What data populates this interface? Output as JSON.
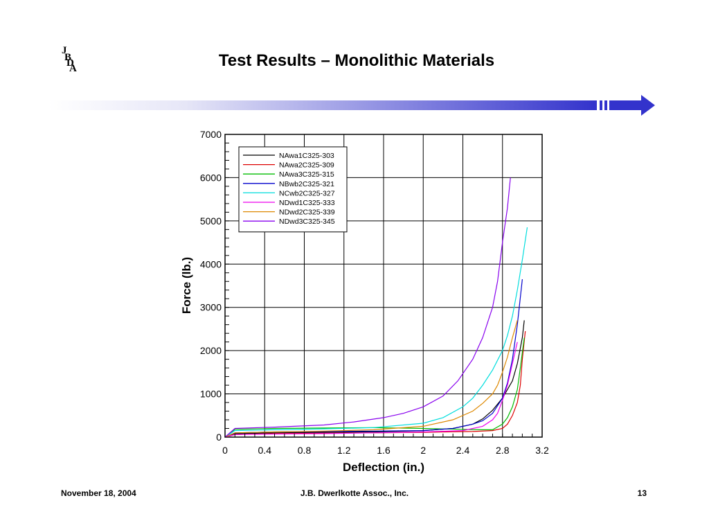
{
  "slide": {
    "title": "Test Results – Monolithic Materials",
    "logo_text": "JBDA",
    "footer_left": "November 18, 2004",
    "footer_center": "J.B. Dwerlkotte Assoc., Inc.",
    "footer_right": "13",
    "accent_color": "#3333cc"
  },
  "chart_data": {
    "type": "line",
    "title": "",
    "xlabel": "Deflection (in.)",
    "ylabel": "Force (lb.)",
    "xlim": [
      0,
      3.2
    ],
    "ylim": [
      0,
      7000
    ],
    "xticks": [
      0,
      0.4,
      0.8,
      1.2,
      1.6,
      2,
      2.4,
      2.8,
      3.2
    ],
    "xtick_labels": [
      "0",
      "0.4",
      "0.8",
      "1.2",
      "1.6",
      "2",
      "2.4",
      "2.8",
      "3.2"
    ],
    "yticks": [
      0,
      1000,
      2000,
      3000,
      4000,
      5000,
      6000,
      7000
    ],
    "ytick_labels": [
      "0",
      "1000",
      "2000",
      "3000",
      "4000",
      "5000",
      "6000",
      "7000"
    ],
    "grid": true,
    "legend_position": "top-left",
    "series": [
      {
        "name": "NAwa1C325-303",
        "color": "#000000",
        "x": [
          0,
          0.1,
          0.5,
          1.0,
          1.5,
          2.0,
          2.3,
          2.5,
          2.6,
          2.7,
          2.8,
          2.9,
          2.95,
          3.0,
          3.02
        ],
        "y": [
          0,
          80,
          100,
          110,
          120,
          150,
          200,
          300,
          420,
          620,
          900,
          1300,
          1700,
          2300,
          2700
        ]
      },
      {
        "name": "NAwa2C325-309",
        "color": "#dd0000",
        "x": [
          0,
          0.1,
          0.5,
          1.0,
          1.5,
          2.0,
          2.5,
          2.7,
          2.8,
          2.85,
          2.9,
          2.95,
          2.98,
          3.0,
          3.03
        ],
        "y": [
          0,
          60,
          80,
          90,
          100,
          110,
          130,
          150,
          200,
          300,
          500,
          800,
          1200,
          1800,
          2450
        ]
      },
      {
        "name": "NAwa3C325-315",
        "color": "#00bb00",
        "x": [
          0,
          0.1,
          0.5,
          1.0,
          1.5,
          2.0,
          2.4,
          2.6,
          2.7,
          2.8,
          2.85,
          2.9,
          2.95,
          2.98,
          3.02
        ],
        "y": [
          0,
          180,
          200,
          210,
          220,
          200,
          180,
          170,
          170,
          300,
          450,
          700,
          1100,
          1600,
          2300
        ]
      },
      {
        "name": "NBwb2C325-321",
        "color": "#0000cc",
        "x": [
          0,
          0.1,
          0.5,
          1.0,
          1.5,
          2.0,
          2.3,
          2.5,
          2.6,
          2.7,
          2.8,
          2.85,
          2.9,
          2.95,
          3.0
        ],
        "y": [
          0,
          100,
          120,
          130,
          140,
          150,
          200,
          300,
          380,
          550,
          900,
          1250,
          1800,
          2600,
          3650
        ]
      },
      {
        "name": "NCwb2C325-327",
        "color": "#00dddd",
        "x": [
          0,
          0.1,
          0.5,
          1.0,
          1.5,
          2.0,
          2.2,
          2.4,
          2.5,
          2.6,
          2.7,
          2.8,
          2.85,
          2.9,
          2.95,
          3.0,
          3.05
        ],
        "y": [
          0,
          150,
          170,
          190,
          220,
          320,
          450,
          700,
          900,
          1200,
          1550,
          2000,
          2350,
          2800,
          3400,
          4100,
          4850
        ]
      },
      {
        "name": "NDwd1C325-333",
        "color": "#ee00ee",
        "x": [
          0,
          0.1,
          0.5,
          1.0,
          1.5,
          2.0,
          2.4,
          2.6,
          2.7,
          2.75,
          2.8,
          2.85,
          2.9,
          2.95
        ],
        "y": [
          0,
          60,
          70,
          80,
          100,
          120,
          150,
          250,
          400,
          550,
          850,
          1200,
          1700,
          2200
        ]
      },
      {
        "name": "NDwd2C325-339",
        "color": "#dd8800",
        "x": [
          0,
          0.1,
          0.5,
          1.0,
          1.5,
          2.0,
          2.3,
          2.5,
          2.6,
          2.7,
          2.75,
          2.8,
          2.85,
          2.9,
          2.95
        ],
        "y": [
          0,
          100,
          120,
          140,
          170,
          250,
          400,
          600,
          780,
          1000,
          1200,
          1500,
          1850,
          2300,
          2700
        ]
      },
      {
        "name": "NDwd3C325-345",
        "color": "#8800ee",
        "x": [
          0,
          0.1,
          0.5,
          1.0,
          1.3,
          1.6,
          1.8,
          2.0,
          2.2,
          2.35,
          2.5,
          2.6,
          2.7,
          2.75,
          2.8,
          2.85,
          2.88
        ],
        "y": [
          0,
          200,
          230,
          280,
          350,
          450,
          550,
          700,
          950,
          1300,
          1800,
          2300,
          3000,
          3600,
          4500,
          5300,
          6000
        ]
      }
    ]
  }
}
